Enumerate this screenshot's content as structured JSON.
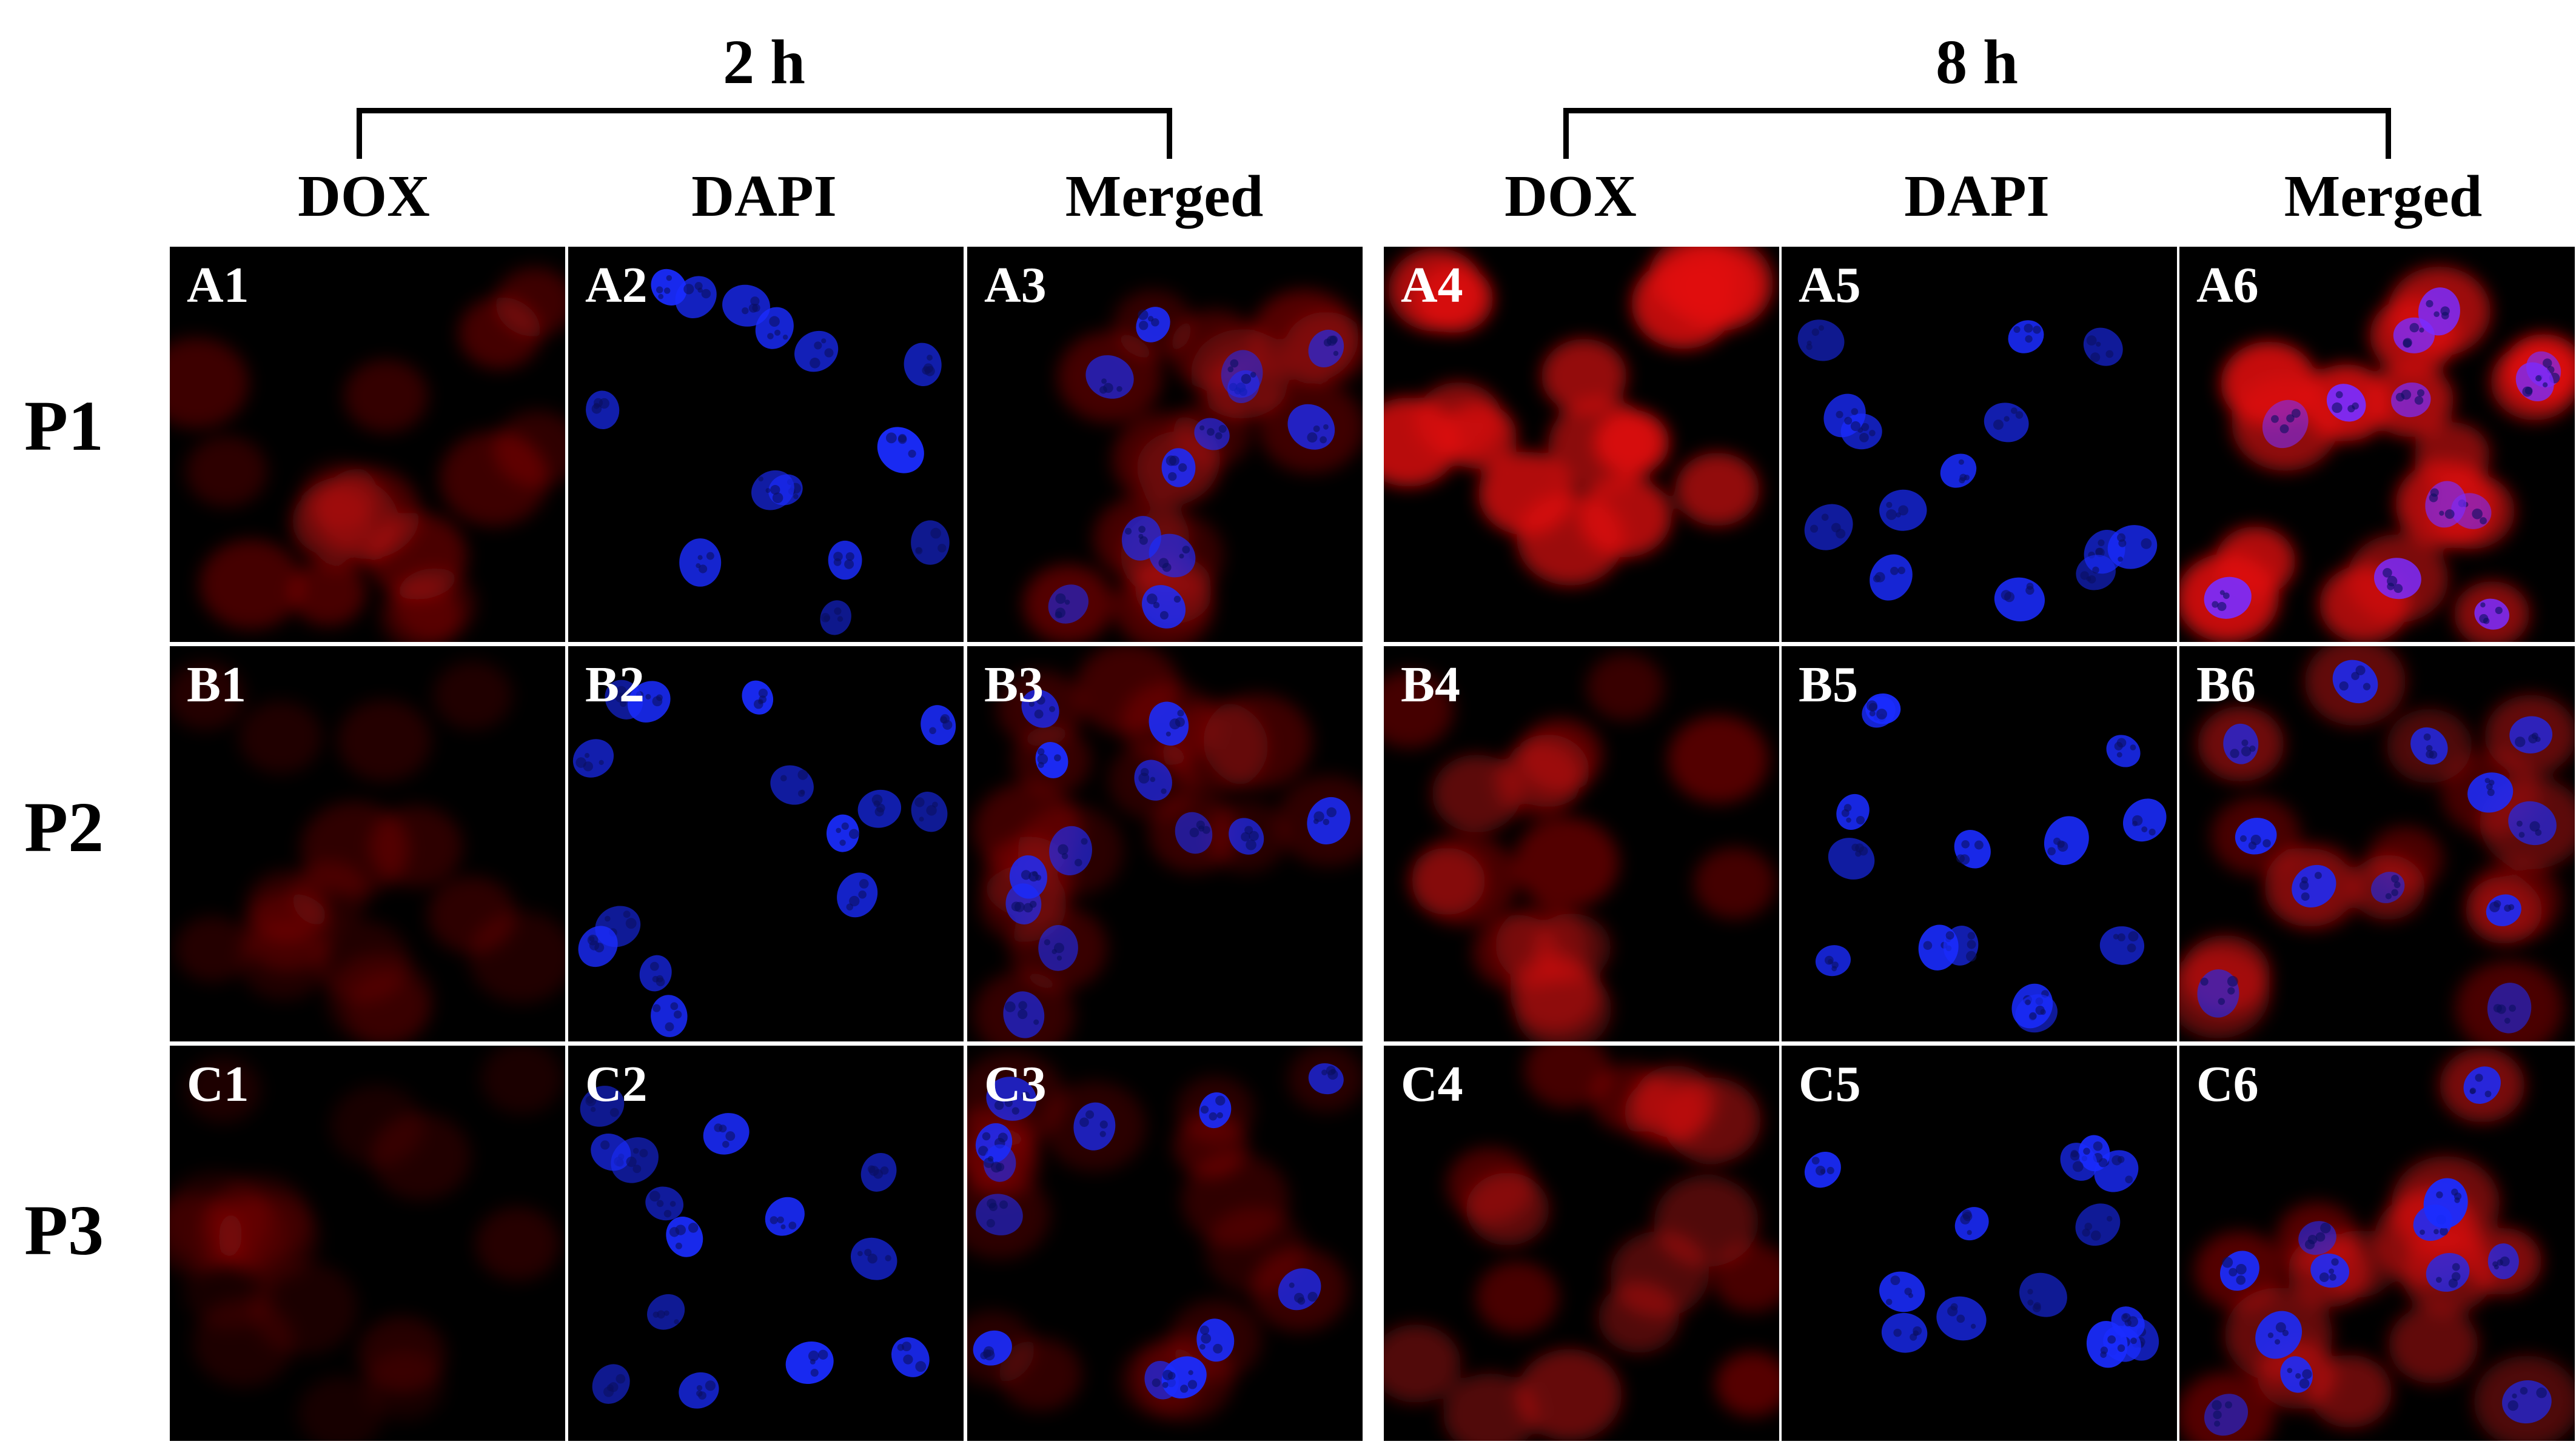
{
  "figure": {
    "time_groups": [
      {
        "label": "2 h"
      },
      {
        "label": "8 h"
      }
    ],
    "column_labels": [
      "DOX",
      "DAPI",
      "Merged",
      "DOX",
      "DAPI",
      "Merged"
    ],
    "row_labels": [
      "P1",
      "P2",
      "P3"
    ],
    "panels": [
      [
        {
          "id": "A1",
          "channel": "dox",
          "intensity": 0.35
        },
        {
          "id": "A2",
          "channel": "dapi",
          "intensity": 0.7
        },
        {
          "id": "A3",
          "channel": "merged",
          "intensity": 0.4
        },
        {
          "id": "A4",
          "channel": "dox",
          "intensity": 0.95
        },
        {
          "id": "A5",
          "channel": "dapi",
          "intensity": 0.7
        },
        {
          "id": "A6",
          "channel": "merged",
          "intensity": 0.95
        }
      ],
      [
        {
          "id": "B1",
          "channel": "dox",
          "intensity": 0.22
        },
        {
          "id": "B2",
          "channel": "dapi",
          "intensity": 0.7
        },
        {
          "id": "B3",
          "channel": "merged",
          "intensity": 0.3
        },
        {
          "id": "B4",
          "channel": "dox",
          "intensity": 0.45
        },
        {
          "id": "B5",
          "channel": "dapi",
          "intensity": 0.7
        },
        {
          "id": "B6",
          "channel": "merged",
          "intensity": 0.55
        }
      ],
      [
        {
          "id": "C1",
          "channel": "dox",
          "intensity": 0.18
        },
        {
          "id": "C2",
          "channel": "dapi",
          "intensity": 0.8
        },
        {
          "id": "C3",
          "channel": "merged",
          "intensity": 0.3
        },
        {
          "id": "C4",
          "channel": "dox",
          "intensity": 0.5
        },
        {
          "id": "C5",
          "channel": "dapi",
          "intensity": 0.8
        },
        {
          "id": "C6",
          "channel": "merged",
          "intensity": 0.6
        }
      ]
    ],
    "colors": {
      "dox_red": "#e01010",
      "dapi_blue": "#1a2cff",
      "merged_nucleus": "#7a2cff",
      "panel_bg": "#000000",
      "text": "#000000",
      "panel_label": "#ffffff"
    }
  }
}
